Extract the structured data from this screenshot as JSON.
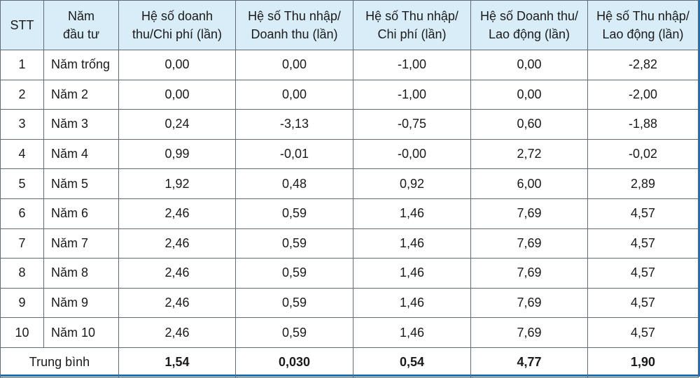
{
  "table": {
    "headers": [
      {
        "line1": "STT",
        "line2": ""
      },
      {
        "line1": "Năm",
        "line2": "đầu tư"
      },
      {
        "line1": "Hệ số doanh",
        "line2": "thu/Chi phí (lần)"
      },
      {
        "line1": "Hệ số Thu nhập/",
        "line2": "Doanh thu (lần)"
      },
      {
        "line1": "Hệ số Thu nhập/",
        "line2": "Chi phí (lần)"
      },
      {
        "line1": "Hệ số Doanh thu/",
        "line2": "Lao động (lần)"
      },
      {
        "line1": "Hệ số Thu nhập/",
        "line2": "Lao động (lần)"
      }
    ],
    "rows": [
      [
        "1",
        "Năm trống",
        "0,00",
        "0,00",
        "-1,00",
        "0,00",
        "-2,82"
      ],
      [
        "2",
        "Năm 2",
        "0,00",
        "0,00",
        "-1,00",
        "0,00",
        "-2,00"
      ],
      [
        "3",
        "Năm 3",
        "0,24",
        "-3,13",
        "-0,75",
        "0,60",
        "-1,88"
      ],
      [
        "4",
        "Năm 4",
        "0,99",
        "-0,01",
        "-0,00",
        "2,72",
        "-0,02"
      ],
      [
        "5",
        "Năm 5",
        "1,92",
        "0,48",
        "0,92",
        "6,00",
        "2,89"
      ],
      [
        "6",
        "Năm 6",
        "2,46",
        "0,59",
        "1,46",
        "7,69",
        "4,57"
      ],
      [
        "7",
        "Năm 7",
        "2,46",
        "0,59",
        "1,46",
        "7,69",
        "4,57"
      ],
      [
        "8",
        "Năm 8",
        "2,46",
        "0,59",
        "1,46",
        "7,69",
        "4,57"
      ],
      [
        "9",
        "Năm 9",
        "2,46",
        "0,59",
        "1,46",
        "7,69",
        "4,57"
      ],
      [
        "10",
        "Năm 10",
        "2,46",
        "0,59",
        "1,46",
        "7,69",
        "4,57"
      ]
    ],
    "footer": {
      "label": "Trung bình",
      "values": [
        "1,54",
        "0,030",
        "0,54",
        "4,77",
        "1,90"
      ]
    }
  },
  "colors": {
    "header_bg": "#d9edf9",
    "frame_border": "#1f6fb0",
    "grid_line": "#5f6b75"
  }
}
